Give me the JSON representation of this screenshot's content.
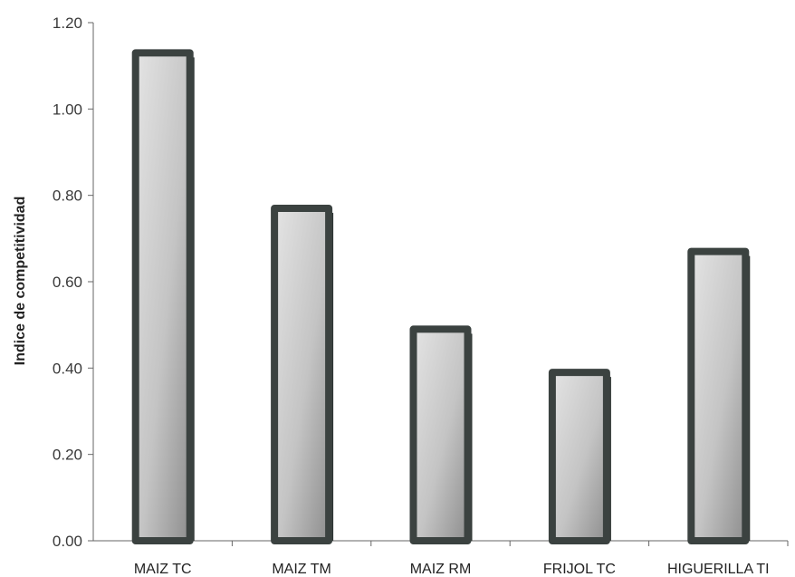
{
  "chart_data": {
    "type": "bar",
    "title": "",
    "xlabel": "",
    "ylabel": "Indice de competitividad",
    "categories": [
      "MAIZ TC",
      "MAIZ TM",
      "MAIZ RM",
      "FRIJOL TC",
      "HIGUERILLA TI"
    ],
    "values": [
      1.13,
      0.77,
      0.49,
      0.39,
      0.67
    ],
    "ylim": [
      0,
      1.2
    ],
    "yticks": [
      "0.00",
      "0.20",
      "0.40",
      "0.60",
      "0.80",
      "1.00",
      "1.20"
    ],
    "grid": false,
    "legend": "none",
    "colors": {
      "bar_outline": "#3b4240",
      "bar_fill_light": "#dcdcdc",
      "bar_fill_dark": "#9a9a9a",
      "axis": "#666666"
    }
  }
}
